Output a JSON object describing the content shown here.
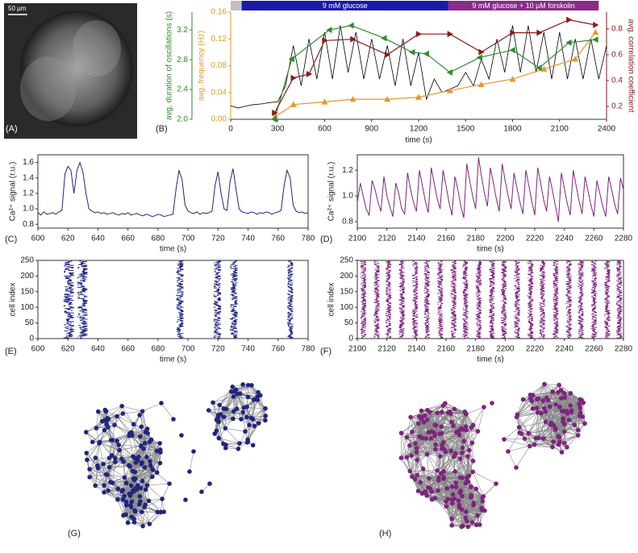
{
  "panel_labels": [
    "(A)",
    "(B)",
    "(C)",
    "(D)",
    "(E)",
    "(F)",
    "(G)",
    "(H)"
  ],
  "scale_bar": "50 μm",
  "networks": [
    {
      "color": "#1f2580"
    },
    {
      "color": "#7d237f"
    }
  ],
  "chart_data": [
    {
      "type": "line",
      "xlabel": "time (s)",
      "xlim": [
        0,
        2400
      ],
      "xticks": [
        0,
        300,
        600,
        900,
        1200,
        1500,
        1800,
        2100,
        2400
      ],
      "ylabel": "avg. frequency (Hz)",
      "ycolor": "#e8962a",
      "ylim": [
        0,
        0.16
      ],
      "yticks": [
        {
          "value": 0,
          "label": "0.00"
        },
        0.04,
        0.08,
        0.12,
        0.16
      ],
      "y2label": "avg. correlation coefficient",
      "y2color": "#8b1a1a",
      "y2lim": [
        0.1,
        0.93
      ],
      "y2ticks": [
        0.2,
        0.4,
        0.6,
        0.8
      ],
      "y3label": "avg. duration of oscillations (s)",
      "y3color": "#2e8b2e",
      "y3lim": [
        2.0,
        3.44
      ],
      "y3ticks": [
        {
          "value": 2,
          "label": "2.0"
        },
        2.4,
        2.8,
        3.2
      ],
      "protocol": [
        {
          "label": null,
          "start": 0,
          "end": 70,
          "color": "#c0c0c0"
        },
        {
          "label": "9 mM glucose",
          "start": 70,
          "end": 1390,
          "color": "#1a1aa8"
        },
        {
          "label": "9 mM glucose + 10 μM forskolin",
          "start": 1390,
          "end": 2350,
          "color": "#8a2a8a"
        }
      ],
      "series": [
        {
          "color": "#000000",
          "axis": "y",
          "x": [
            0,
            50,
            100,
            150,
            200,
            250,
            300,
            350,
            400,
            450,
            500,
            550,
            600,
            650,
            700,
            750,
            800,
            850,
            900,
            950,
            1000,
            1050,
            1100,
            1150,
            1200,
            1250,
            1300,
            1350,
            1400,
            1450,
            1500,
            1550,
            1600,
            1650,
            1700,
            1750,
            1800,
            1850,
            1900,
            1950,
            2000,
            2050,
            2100,
            2150,
            2200,
            2250,
            2300,
            2350,
            2400
          ],
          "values": [
            0.02,
            0.017,
            0.02,
            0.022,
            0.023,
            0.025,
            0.026,
            0.05,
            0.11,
            0.05,
            0.12,
            0.06,
            0.13,
            0.06,
            0.14,
            0.07,
            0.13,
            0.06,
            0.12,
            0.06,
            0.11,
            0.05,
            0.12,
            0.05,
            0.1,
            0.03,
            0.06,
            0.04,
            0.045,
            0.05,
            0.07,
            0.05,
            0.09,
            0.06,
            0.12,
            0.07,
            0.14,
            0.07,
            0.14,
            0.07,
            0.13,
            0.06,
            0.13,
            0.06,
            0.12,
            0.06,
            0.12,
            0.06,
            0.11
          ]
        },
        {
          "color": "#e8962a",
          "axis": "y",
          "marker": "up",
          "x": [
            280,
            400,
            600,
            780,
            1000,
            1200,
            1400,
            1600,
            1800,
            2000,
            2200,
            2330
          ],
          "values": [
            0.003,
            0.022,
            0.026,
            0.03,
            0.03,
            0.033,
            0.043,
            0.052,
            0.06,
            0.075,
            0.09,
            0.13
          ]
        },
        {
          "color": "#2e8b2e",
          "axis": "y3",
          "marker": "left",
          "x": [
            280,
            390,
            630,
            770,
            980,
            1160,
            1250,
            1400,
            1590,
            1800,
            1970,
            2160,
            2330
          ],
          "values": [
            2.0,
            2.81,
            3.2,
            3.26,
            3.09,
            2.9,
            2.88,
            2.63,
            2.83,
            2.93,
            2.69,
            3.03,
            3.07
          ]
        },
        {
          "color": "#8b1a1a",
          "axis": "y2",
          "marker": "right",
          "x": [
            280,
            400,
            500,
            600,
            780,
            1000,
            1200,
            1400,
            1600,
            1800,
            1970,
            2160,
            2330
          ],
          "values": [
            0.15,
            0.42,
            0.45,
            0.71,
            0.72,
            0.6,
            0.76,
            0.76,
            0.62,
            0.77,
            0.77,
            0.87,
            0.83
          ]
        }
      ]
    },
    {
      "type": "line",
      "xlabel": "time (s)",
      "ylabel": "Ca²⁺ signal (r.u.)",
      "color": "#1f2580",
      "xlim": [
        600,
        780
      ],
      "xticks": [
        600,
        620,
        640,
        660,
        680,
        700,
        720,
        740,
        760,
        780
      ],
      "ylim": [
        0.75,
        1.7
      ],
      "yticks": [
        0.8,
        {
          "value": 1,
          "label": "1.0"
        },
        1.2,
        1.4,
        1.6
      ],
      "x": [
        600,
        602,
        604,
        606,
        608,
        610,
        612,
        614,
        616,
        618,
        620,
        622,
        624,
        626,
        628,
        630,
        632,
        634,
        636,
        638,
        640,
        642,
        644,
        646,
        648,
        650,
        652,
        654,
        656,
        658,
        660,
        662,
        664,
        666,
        668,
        670,
        672,
        674,
        676,
        678,
        680,
        682,
        684,
        686,
        688,
        690,
        692,
        694,
        696,
        698,
        700,
        702,
        704,
        706,
        708,
        710,
        712,
        714,
        716,
        718,
        720,
        722,
        724,
        726,
        728,
        730,
        732,
        734,
        736,
        738,
        740,
        742,
        744,
        746,
        748,
        750,
        752,
        754,
        756,
        758,
        760,
        762,
        764,
        766,
        768,
        770,
        772,
        774,
        776,
        778,
        780
      ],
      "values": [
        0.95,
        0.92,
        0.96,
        0.93,
        0.94,
        0.95,
        0.93,
        0.96,
        0.98,
        1.45,
        1.55,
        1.5,
        1.2,
        1.5,
        1.6,
        1.48,
        1.2,
        1.0,
        0.97,
        0.95,
        0.96,
        0.94,
        0.95,
        0.93,
        0.94,
        0.95,
        0.93,
        0.92,
        0.94,
        0.93,
        0.95,
        0.92,
        0.93,
        0.94,
        0.92,
        0.91,
        0.93,
        0.92,
        0.9,
        0.91,
        0.93,
        0.92,
        0.9,
        0.91,
        0.92,
        0.93,
        1.25,
        1.5,
        1.38,
        1.05,
        0.97,
        0.95,
        0.94,
        0.96,
        0.93,
        0.95,
        0.94,
        0.95,
        0.97,
        1.3,
        1.48,
        1.2,
        1.0,
        0.98,
        1.35,
        1.52,
        1.25,
        1.0,
        0.96,
        0.95,
        0.94,
        0.96,
        0.95,
        0.93,
        0.95,
        0.94,
        0.96,
        0.95,
        0.93,
        0.95,
        0.96,
        0.98,
        1.3,
        1.5,
        1.4,
        1.05,
        0.97,
        0.95,
        0.96,
        0.94,
        0.95
      ]
    },
    {
      "type": "line",
      "xlabel": "time (s)",
      "ylabel": "Ca²⁺ signal (r.u.)",
      "color": "#7d237f",
      "xlim": [
        2100,
        2280
      ],
      "xticks": [
        2100,
        2120,
        2140,
        2160,
        2180,
        2200,
        2220,
        2240,
        2260,
        2280
      ],
      "ylim": [
        0.75,
        1.32
      ],
      "yticks": [
        0.8,
        {
          "value": 1,
          "label": "1.0"
        },
        1.2
      ],
      "x": [
        2100,
        2102,
        2104,
        2106,
        2108,
        2110,
        2112,
        2114,
        2116,
        2118,
        2120,
        2122,
        2124,
        2126,
        2128,
        2130,
        2132,
        2134,
        2136,
        2138,
        2140,
        2142,
        2144,
        2146,
        2148,
        2150,
        2152,
        2154,
        2156,
        2158,
        2160,
        2162,
        2164,
        2166,
        2168,
        2170,
        2172,
        2174,
        2176,
        2178,
        2180,
        2182,
        2184,
        2186,
        2188,
        2190,
        2192,
        2194,
        2196,
        2198,
        2200,
        2202,
        2204,
        2206,
        2208,
        2210,
        2212,
        2214,
        2216,
        2218,
        2220,
        2222,
        2224,
        2226,
        2228,
        2230,
        2232,
        2234,
        2236,
        2238,
        2240,
        2242,
        2244,
        2246,
        2248,
        2250,
        2252,
        2254,
        2256,
        2258,
        2260,
        2262,
        2264,
        2266,
        2268,
        2270,
        2272,
        2274,
        2276,
        2278,
        2280
      ],
      "values": [
        0.95,
        1.1,
        1.0,
        0.9,
        0.85,
        1.12,
        1.05,
        0.95,
        0.88,
        1.15,
        1.0,
        0.92,
        0.84,
        1.1,
        1.02,
        0.9,
        0.86,
        1.18,
        1.05,
        0.95,
        0.88,
        1.2,
        1.08,
        0.96,
        0.87,
        1.22,
        1.1,
        0.98,
        0.9,
        1.2,
        1.08,
        0.95,
        0.85,
        1.15,
        1.05,
        0.92,
        0.83,
        1.25,
        1.12,
        1.0,
        0.9,
        1.3,
        1.15,
        1.02,
        0.92,
        1.22,
        1.1,
        0.98,
        0.88,
        1.25,
        1.12,
        1.0,
        0.9,
        1.18,
        1.06,
        0.95,
        0.86,
        1.2,
        1.08,
        0.96,
        0.85,
        1.22,
        1.1,
        0.97,
        0.88,
        1.15,
        1.04,
        0.92,
        0.8,
        1.18,
        1.06,
        0.94,
        0.85,
        1.2,
        1.08,
        0.96,
        0.86,
        1.15,
        1.04,
        0.93,
        0.84,
        1.12,
        1.02,
        0.92,
        0.84,
        1.15,
        1.05,
        0.94,
        0.86,
        1.14,
        1.05
      ]
    },
    {
      "type": "raster",
      "xlabel": "time (s)",
      "ylabel": "cell index",
      "color": "#1f2580",
      "xlim": [
        600,
        780
      ],
      "xticks": [
        600,
        620,
        640,
        660,
        680,
        700,
        720,
        740,
        760,
        780
      ],
      "ylim": [
        0,
        250
      ],
      "yticks": [
        0,
        50,
        100,
        150,
        200,
        250
      ],
      "bursts": [
        {
          "start": 617,
          "end": 624
        },
        {
          "start": 626,
          "end": 633
        },
        {
          "start": 692,
          "end": 697
        },
        {
          "start": 717,
          "end": 722
        },
        {
          "start": 728,
          "end": 733
        },
        {
          "start": 766,
          "end": 770
        }
      ]
    },
    {
      "type": "raster",
      "xlabel": "time (s)",
      "ylabel": "cell index",
      "color": "#7d237f",
      "xlim": [
        2100,
        2280
      ],
      "xticks": [
        2100,
        2120,
        2140,
        2160,
        2180,
        2200,
        2220,
        2240,
        2260,
        2280
      ],
      "ylim": [
        0,
        250
      ],
      "yticks": [
        0,
        50,
        100,
        150,
        200,
        250
      ],
      "bursts": [
        {
          "start": 2102,
          "end": 2106
        },
        {
          "start": 2111,
          "end": 2115
        },
        {
          "start": 2119,
          "end": 2123
        },
        {
          "start": 2128,
          "end": 2132
        },
        {
          "start": 2137,
          "end": 2141
        },
        {
          "start": 2145,
          "end": 2149
        },
        {
          "start": 2154,
          "end": 2158
        },
        {
          "start": 2163,
          "end": 2167
        },
        {
          "start": 2171,
          "end": 2175
        },
        {
          "start": 2180,
          "end": 2184
        },
        {
          "start": 2189,
          "end": 2193
        },
        {
          "start": 2197,
          "end": 2201
        },
        {
          "start": 2206,
          "end": 2210
        },
        {
          "start": 2215,
          "end": 2219
        },
        {
          "start": 2223,
          "end": 2227
        },
        {
          "start": 2232,
          "end": 2236
        },
        {
          "start": 2241,
          "end": 2245
        },
        {
          "start": 2249,
          "end": 2253
        },
        {
          "start": 2258,
          "end": 2262
        },
        {
          "start": 2267,
          "end": 2271
        },
        {
          "start": 2275,
          "end": 2279
        }
      ]
    }
  ]
}
